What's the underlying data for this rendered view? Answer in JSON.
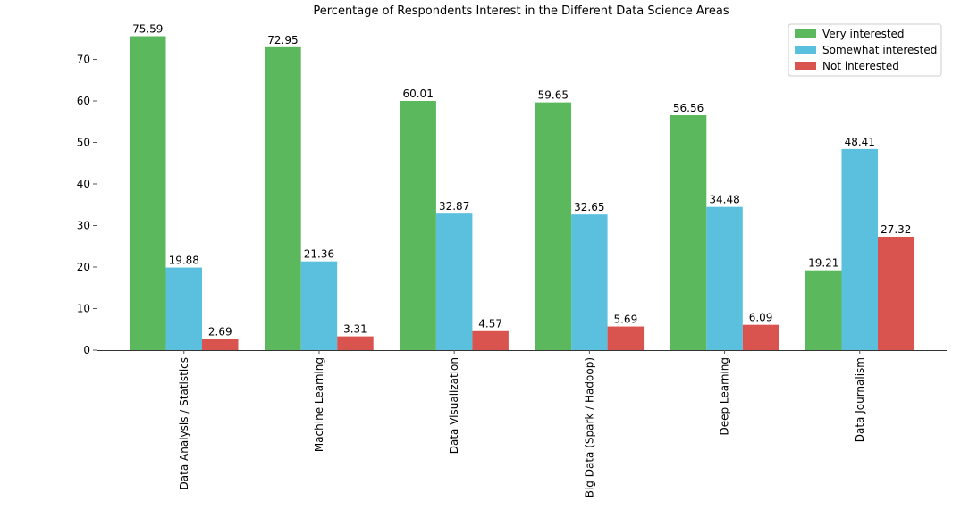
{
  "chart_data": {
    "type": "bar",
    "title": "Percentage of Respondents Interest in the Different Data Science Areas",
    "xlabel": "",
    "ylabel": "",
    "categories": [
      "Data Analysis / Statistics",
      "Machine Learning",
      "Data Visualization",
      "Big Data (Spark / Hadoop)",
      "Deep Learning",
      "Data Journalism"
    ],
    "series": [
      {
        "name": "Very interested",
        "color": "#5cb85c",
        "values": [
          75.59,
          72.95,
          60.01,
          59.65,
          56.56,
          19.21
        ],
        "labels": [
          "75.59",
          "72.95",
          "60.01",
          "59.65",
          "56.56",
          "19.21"
        ]
      },
      {
        "name": "Somewhat interested",
        "color": "#5bc0de",
        "values": [
          19.88,
          21.36,
          32.87,
          32.65,
          34.48,
          48.41
        ],
        "labels": [
          "19.88",
          "21.36",
          "32.87",
          "32.65",
          "34.48",
          "48.41"
        ]
      },
      {
        "name": "Not interested",
        "color": "#d9534f",
        "values": [
          2.69,
          3.31,
          4.57,
          5.69,
          6.09,
          27.32
        ],
        "labels": [
          "2.69",
          "3.31",
          "4.57",
          "5.69",
          "6.09",
          "27.32"
        ]
      }
    ],
    "y_ticks": [
      "0",
      "10",
      "20",
      "30",
      "40",
      "50",
      "60",
      "70"
    ],
    "ylim": [
      0,
      80
    ],
    "grid": false,
    "legend_position": "top-right"
  }
}
